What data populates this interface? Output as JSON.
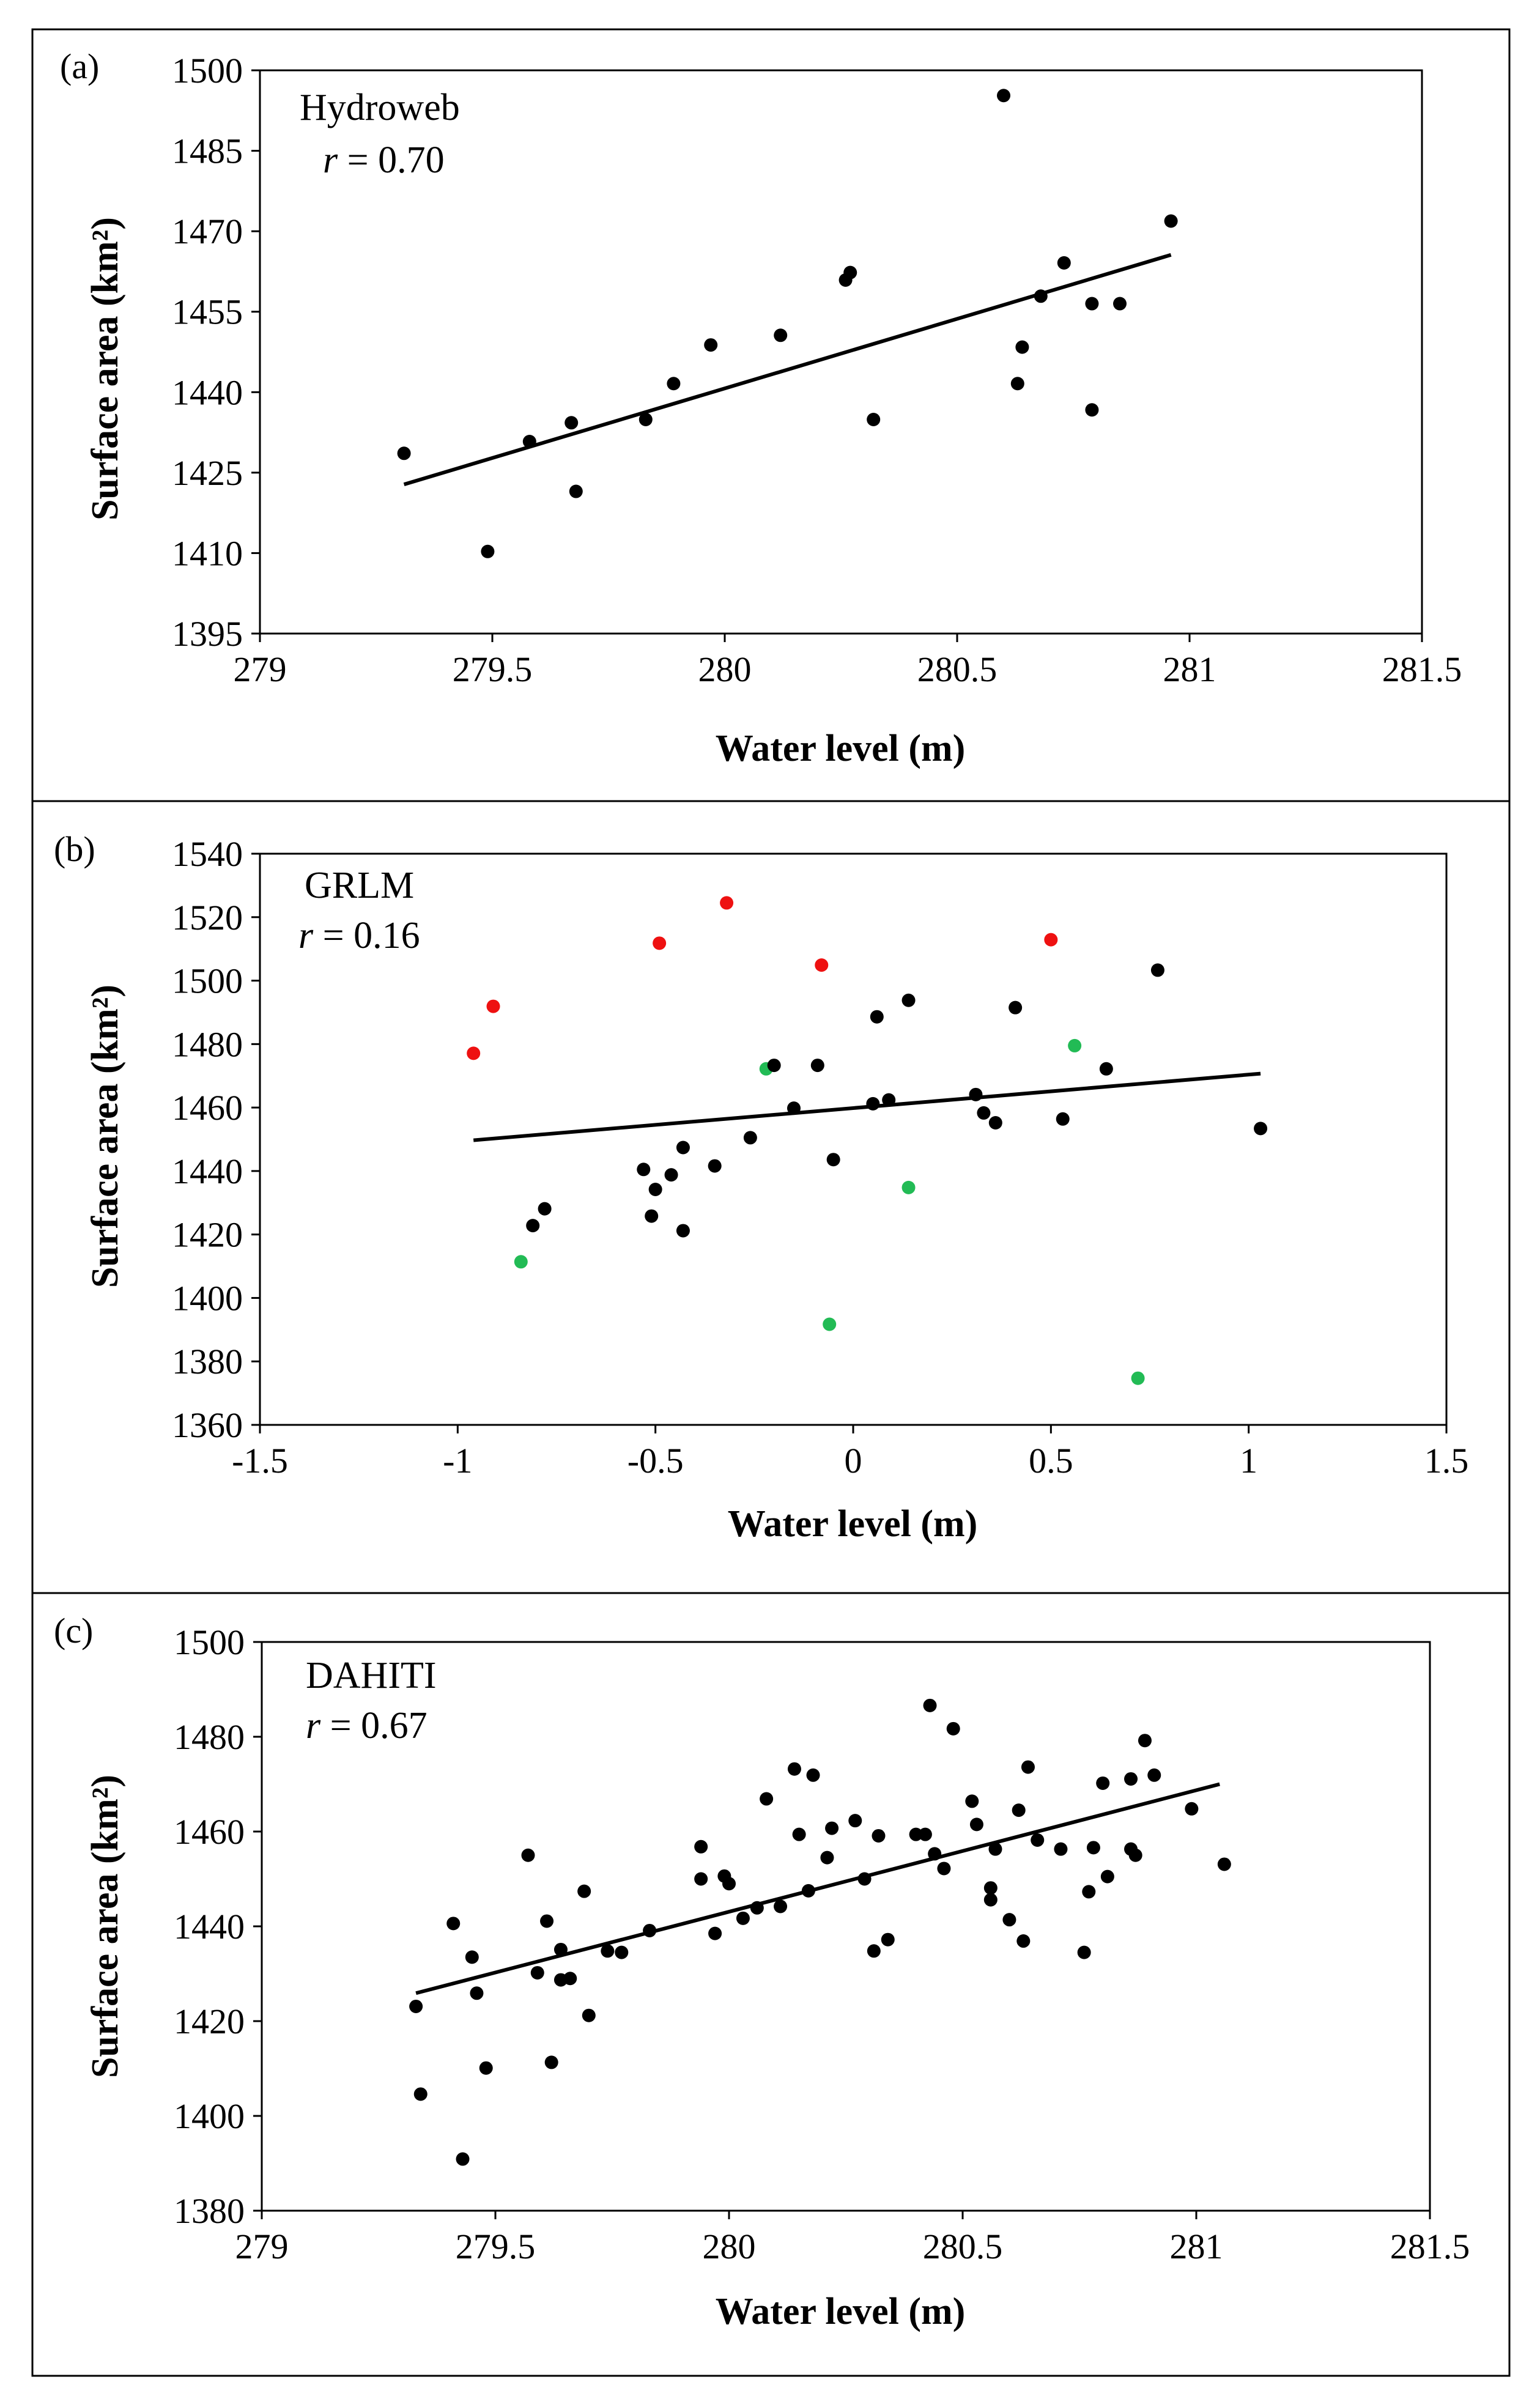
{
  "chart_data": [
    {
      "panel_label": "(a)",
      "type": "scatter",
      "series_label": "Hydroweb",
      "r_symbol": "r",
      "r_text": " = 0.70",
      "xlabel": "Water level (m)",
      "ylabel": "Surface area (km²)",
      "xlim": [
        279,
        281.5
      ],
      "ylim": [
        1395,
        1500
      ],
      "xticks": [
        279,
        279.5,
        280,
        280.5,
        281,
        281.5
      ],
      "xtick_labels": [
        "279",
        "279.5",
        "280",
        "280.5",
        "281",
        "281.5"
      ],
      "yticks": [
        1395,
        1410,
        1425,
        1440,
        1455,
        1470,
        1485,
        1500
      ],
      "ytick_labels": [
        "1395",
        "1410",
        "1425",
        "1440",
        "1455",
        "1470",
        "1485",
        "1500"
      ],
      "grid": false,
      "points": [
        {
          "x": 279.31,
          "y": 1428.6,
          "color": "#000000"
        },
        {
          "x": 279.49,
          "y": 1410.3,
          "color": "#000000"
        },
        {
          "x": 279.58,
          "y": 1430.8,
          "color": "#000000"
        },
        {
          "x": 279.67,
          "y": 1434.3,
          "color": "#000000"
        },
        {
          "x": 279.68,
          "y": 1421.5,
          "color": "#000000"
        },
        {
          "x": 279.83,
          "y": 1434.9,
          "color": "#000000"
        },
        {
          "x": 279.89,
          "y": 1441.6,
          "color": "#000000"
        },
        {
          "x": 279.97,
          "y": 1448.8,
          "color": "#000000"
        },
        {
          "x": 280.12,
          "y": 1450.6,
          "color": "#000000"
        },
        {
          "x": 280.26,
          "y": 1460.9,
          "color": "#000000"
        },
        {
          "x": 280.27,
          "y": 1462.3,
          "color": "#000000"
        },
        {
          "x": 280.32,
          "y": 1434.9,
          "color": "#000000"
        },
        {
          "x": 280.6,
          "y": 1495.3,
          "color": "#000000"
        },
        {
          "x": 280.63,
          "y": 1441.6,
          "color": "#000000"
        },
        {
          "x": 280.64,
          "y": 1448.4,
          "color": "#000000"
        },
        {
          "x": 280.68,
          "y": 1457.9,
          "color": "#000000"
        },
        {
          "x": 280.73,
          "y": 1464.1,
          "color": "#000000"
        },
        {
          "x": 280.79,
          "y": 1456.5,
          "color": "#000000"
        },
        {
          "x": 280.79,
          "y": 1436.7,
          "color": "#000000"
        },
        {
          "x": 280.85,
          "y": 1456.5,
          "color": "#000000"
        },
        {
          "x": 280.96,
          "y": 1471.9,
          "color": "#000000"
        }
      ],
      "trendline": {
        "x": [
          279.31,
          280.96
        ],
        "y": [
          1422.8,
          1465.6
        ]
      }
    },
    {
      "panel_label": "(b)",
      "type": "scatter",
      "series_label": "GRLM",
      "r_symbol": "r",
      "r_text": " = 0.16",
      "xlabel": "Water level (m)",
      "ylabel": "Surface area (km²)",
      "xlim": [
        -1.5,
        1.5
      ],
      "ylim": [
        1360,
        1540
      ],
      "xticks": [
        -1.5,
        -1,
        -0.5,
        0,
        0.5,
        1,
        1.5
      ],
      "xtick_labels": [
        "-1.5",
        "-1",
        "-0.5",
        "0",
        "0.5",
        "1",
        "1.5"
      ],
      "yticks": [
        1360,
        1380,
        1400,
        1420,
        1440,
        1460,
        1480,
        1500,
        1520,
        1540
      ],
      "ytick_labels": [
        "1360",
        "1380",
        "1400",
        "1420",
        "1440",
        "1460",
        "1480",
        "1500",
        "1520",
        "1540"
      ],
      "grid": false,
      "points": [
        {
          "x": -0.96,
          "y": 1477.1,
          "color": "#ee1111"
        },
        {
          "x": -0.91,
          "y": 1491.9,
          "color": "#ee1111"
        },
        {
          "x": -0.49,
          "y": 1511.8,
          "color": "#ee1111"
        },
        {
          "x": -0.32,
          "y": 1524.5,
          "color": "#ee1111"
        },
        {
          "x": -0.08,
          "y": 1504.9,
          "color": "#ee1111"
        },
        {
          "x": 0.5,
          "y": 1512.9,
          "color": "#ee1111"
        },
        {
          "x": -0.84,
          "y": 1411.4,
          "color": "#22bb55"
        },
        {
          "x": -0.22,
          "y": 1472.2,
          "color": "#22bb55"
        },
        {
          "x": -0.06,
          "y": 1391.7,
          "color": "#22bb55"
        },
        {
          "x": 0.14,
          "y": 1434.8,
          "color": "#22bb55"
        },
        {
          "x": 0.56,
          "y": 1479.5,
          "color": "#22bb55"
        },
        {
          "x": 0.72,
          "y": 1374.7,
          "color": "#22bb55"
        },
        {
          "x": -0.81,
          "y": 1422.8,
          "color": "#000000"
        },
        {
          "x": -0.78,
          "y": 1428.1,
          "color": "#000000"
        },
        {
          "x": -0.53,
          "y": 1440.5,
          "color": "#000000"
        },
        {
          "x": -0.51,
          "y": 1425.8,
          "color": "#000000"
        },
        {
          "x": -0.5,
          "y": 1434.2,
          "color": "#000000"
        },
        {
          "x": -0.46,
          "y": 1438.8,
          "color": "#000000"
        },
        {
          "x": -0.43,
          "y": 1421.2,
          "color": "#000000"
        },
        {
          "x": -0.43,
          "y": 1447.4,
          "color": "#000000"
        },
        {
          "x": -0.35,
          "y": 1441.6,
          "color": "#000000"
        },
        {
          "x": -0.26,
          "y": 1450.5,
          "color": "#000000"
        },
        {
          "x": -0.2,
          "y": 1473.3,
          "color": "#000000"
        },
        {
          "x": -0.15,
          "y": 1459.8,
          "color": "#000000"
        },
        {
          "x": -0.09,
          "y": 1473.3,
          "color": "#000000"
        },
        {
          "x": -0.05,
          "y": 1443.6,
          "color": "#000000"
        },
        {
          "x": 0.05,
          "y": 1461.2,
          "color": "#000000"
        },
        {
          "x": 0.06,
          "y": 1488.6,
          "color": "#000000"
        },
        {
          "x": 0.09,
          "y": 1462.4,
          "color": "#000000"
        },
        {
          "x": 0.14,
          "y": 1493.8,
          "color": "#000000"
        },
        {
          "x": 0.31,
          "y": 1464.1,
          "color": "#000000"
        },
        {
          "x": 0.33,
          "y": 1458.3,
          "color": "#000000"
        },
        {
          "x": 0.36,
          "y": 1455.2,
          "color": "#000000"
        },
        {
          "x": 0.41,
          "y": 1491.5,
          "color": "#000000"
        },
        {
          "x": 0.53,
          "y": 1456.4,
          "color": "#000000"
        },
        {
          "x": 0.64,
          "y": 1472.2,
          "color": "#000000"
        },
        {
          "x": 0.77,
          "y": 1503.3,
          "color": "#000000"
        },
        {
          "x": 1.03,
          "y": 1453.4,
          "color": "#000000"
        }
      ],
      "trendline": {
        "x": [
          -0.96,
          1.03
        ],
        "y": [
          1449.7,
          1470.7
        ]
      }
    },
    {
      "panel_label": "(c)",
      "type": "scatter",
      "series_label": "DAHITI",
      "r_symbol": "r",
      "r_text": " = 0.67",
      "xlabel": "Water level (m)",
      "ylabel": "Surface area (km²)",
      "xlim": [
        279,
        281.5
      ],
      "ylim": [
        1380,
        1500
      ],
      "xticks": [
        279,
        279.5,
        280,
        280.5,
        281,
        281.5
      ],
      "xtick_labels": [
        "279",
        "279.5",
        "280",
        "280.5",
        "281",
        "281.5"
      ],
      "yticks": [
        1380,
        1400,
        1420,
        1440,
        1460,
        1480,
        1500
      ],
      "ytick_labels": [
        "1380",
        "1400",
        "1420",
        "1440",
        "1460",
        "1480",
        "1500"
      ],
      "grid": false,
      "points": [
        {
          "x": 279.33,
          "y": 1423.1
        },
        {
          "x": 279.34,
          "y": 1404.6
        },
        {
          "x": 279.41,
          "y": 1440.6
        },
        {
          "x": 279.43,
          "y": 1390.9
        },
        {
          "x": 279.45,
          "y": 1433.5
        },
        {
          "x": 279.46,
          "y": 1425.9
        },
        {
          "x": 279.48,
          "y": 1410.1
        },
        {
          "x": 279.57,
          "y": 1455.0
        },
        {
          "x": 279.59,
          "y": 1430.2
        },
        {
          "x": 279.61,
          "y": 1441.1
        },
        {
          "x": 279.62,
          "y": 1411.3
        },
        {
          "x": 279.64,
          "y": 1428.7
        },
        {
          "x": 279.64,
          "y": 1435.1
        },
        {
          "x": 279.66,
          "y": 1429.0
        },
        {
          "x": 279.69,
          "y": 1447.4
        },
        {
          "x": 279.7,
          "y": 1421.2
        },
        {
          "x": 279.74,
          "y": 1434.8
        },
        {
          "x": 279.77,
          "y": 1434.5
        },
        {
          "x": 279.83,
          "y": 1439.1
        },
        {
          "x": 279.94,
          "y": 1456.8
        },
        {
          "x": 279.94,
          "y": 1450.0
        },
        {
          "x": 279.97,
          "y": 1438.5
        },
        {
          "x": 279.99,
          "y": 1450.6
        },
        {
          "x": 280.0,
          "y": 1449.0
        },
        {
          "x": 280.03,
          "y": 1441.7
        },
        {
          "x": 280.06,
          "y": 1443.9
        },
        {
          "x": 280.08,
          "y": 1466.9
        },
        {
          "x": 280.11,
          "y": 1444.2
        },
        {
          "x": 280.14,
          "y": 1473.2
        },
        {
          "x": 280.15,
          "y": 1459.4
        },
        {
          "x": 280.17,
          "y": 1447.5
        },
        {
          "x": 280.18,
          "y": 1471.9
        },
        {
          "x": 280.21,
          "y": 1454.5
        },
        {
          "x": 280.22,
          "y": 1460.7
        },
        {
          "x": 280.27,
          "y": 1462.3
        },
        {
          "x": 280.29,
          "y": 1450.0
        },
        {
          "x": 280.31,
          "y": 1434.8
        },
        {
          "x": 280.32,
          "y": 1459.1
        },
        {
          "x": 280.34,
          "y": 1437.2
        },
        {
          "x": 280.4,
          "y": 1459.4
        },
        {
          "x": 280.42,
          "y": 1459.4
        },
        {
          "x": 280.43,
          "y": 1486.6
        },
        {
          "x": 280.44,
          "y": 1455.3
        },
        {
          "x": 280.46,
          "y": 1452.2
        },
        {
          "x": 280.48,
          "y": 1481.7
        },
        {
          "x": 280.52,
          "y": 1466.4
        },
        {
          "x": 280.53,
          "y": 1461.5
        },
        {
          "x": 280.56,
          "y": 1445.6
        },
        {
          "x": 280.56,
          "y": 1448.1
        },
        {
          "x": 280.57,
          "y": 1456.3
        },
        {
          "x": 280.6,
          "y": 1441.4
        },
        {
          "x": 280.62,
          "y": 1464.5
        },
        {
          "x": 280.63,
          "y": 1436.9
        },
        {
          "x": 280.64,
          "y": 1473.6
        },
        {
          "x": 280.66,
          "y": 1458.2
        },
        {
          "x": 280.71,
          "y": 1456.3
        },
        {
          "x": 280.76,
          "y": 1434.5
        },
        {
          "x": 280.77,
          "y": 1447.3
        },
        {
          "x": 280.78,
          "y": 1456.6
        },
        {
          "x": 280.8,
          "y": 1470.2
        },
        {
          "x": 280.81,
          "y": 1450.5
        },
        {
          "x": 280.86,
          "y": 1471.1
        },
        {
          "x": 280.86,
          "y": 1456.3
        },
        {
          "x": 280.87,
          "y": 1455.0
        },
        {
          "x": 280.89,
          "y": 1479.2
        },
        {
          "x": 280.91,
          "y": 1471.9
        },
        {
          "x": 280.99,
          "y": 1464.8
        },
        {
          "x": 281.06,
          "y": 1453.1
        }
      ],
      "trendline": {
        "x": [
          279.33,
          281.05
        ],
        "y": [
          1425.9,
          1470.0
        ]
      }
    }
  ]
}
